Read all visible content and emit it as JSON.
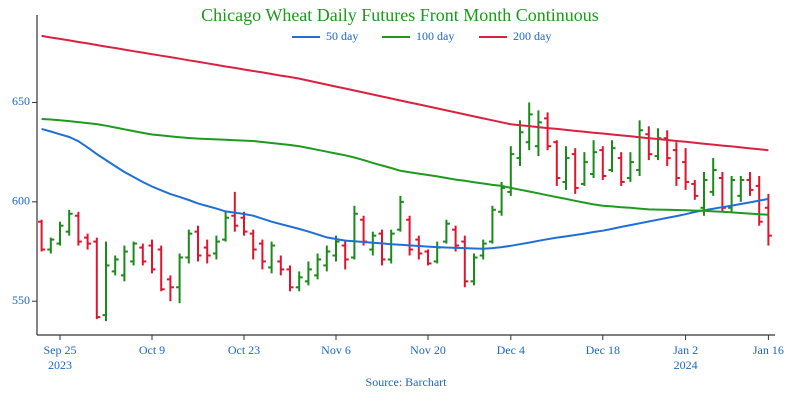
{
  "chart_data": {
    "type": "ohlc",
    "title": "Chicago Wheat Daily Futures Front Month Continuous",
    "source": "Source: Barchart",
    "up_color": "#1a8a1a",
    "down_color": "#e0142c",
    "categories": [
      null,
      null,
      "Sep 25\n2023",
      null,
      null,
      null,
      null,
      null,
      null,
      null,
      null,
      null,
      "Oct 9",
      null,
      null,
      null,
      null,
      null,
      null,
      null,
      null,
      null,
      "Oct 23",
      null,
      null,
      null,
      null,
      null,
      null,
      null,
      null,
      null,
      "Nov 6",
      null,
      null,
      null,
      null,
      null,
      null,
      null,
      null,
      null,
      "Nov 20",
      null,
      null,
      null,
      null,
      null,
      null,
      null,
      null,
      "Dec 4",
      null,
      null,
      null,
      null,
      null,
      null,
      null,
      null,
      null,
      "Dec 18",
      null,
      null,
      null,
      null,
      null,
      null,
      null,
      null,
      "Jan 2\n2024",
      null,
      null,
      null,
      null,
      null,
      null,
      null,
      null,
      "Jan 16"
    ],
    "open": [
      590,
      576,
      579,
      585,
      593,
      582,
      580,
      543,
      565,
      563,
      570,
      577,
      578,
      576,
      561,
      557,
      572,
      585,
      577,
      574,
      581,
      593,
      592,
      584,
      579,
      567,
      570,
      566,
      557,
      560,
      563,
      568,
      573,
      578,
      572,
      591,
      576,
      584,
      571,
      586,
      591,
      581,
      575,
      570,
      580,
      586,
      580,
      560,
      573,
      580,
      595,
      605,
      622,
      630,
      628,
      642,
      630,
      610,
      624,
      609,
      614,
      626,
      616,
      622,
      612,
      616,
      634,
      623,
      632,
      626,
      620,
      609,
      597,
      605,
      612,
      597,
      603,
      611,
      608,
      597
    ],
    "high": [
      591,
      582,
      590,
      596,
      595,
      584,
      582,
      580,
      573,
      578,
      580,
      579,
      581,
      578,
      563,
      574,
      586,
      588,
      581,
      583,
      595,
      605,
      595,
      586,
      581,
      580,
      573,
      568,
      565,
      570,
      574,
      578,
      583,
      581,
      598,
      593,
      585,
      586,
      586,
      603,
      593,
      583,
      576,
      580,
      591,
      588,
      583,
      574,
      581,
      598,
      610,
      628,
      641,
      650,
      646,
      645,
      631,
      628,
      627,
      625,
      631,
      628,
      631,
      625,
      625,
      641,
      638,
      637,
      636,
      630,
      627,
      611,
      615,
      622,
      615,
      613,
      613,
      615,
      613,
      604
    ],
    "low": [
      575,
      574,
      578,
      583,
      578,
      576,
      541,
      540,
      563,
      560,
      568,
      568,
      564,
      555,
      550,
      549,
      569,
      570,
      569,
      571,
      580,
      585,
      583,
      571,
      566,
      564,
      563,
      555,
      555,
      558,
      561,
      565,
      570,
      566,
      571,
      578,
      573,
      568,
      569,
      585,
      573,
      571,
      568,
      569,
      579,
      575,
      557,
      558,
      571,
      579,
      593,
      603,
      618,
      626,
      623,
      626,
      608,
      606,
      604,
      608,
      612,
      611,
      615,
      608,
      610,
      613,
      621,
      621,
      618,
      608,
      606,
      601,
      593,
      603,
      595,
      595,
      600,
      603,
      588,
      578
    ],
    "close": [
      576,
      581,
      588,
      594,
      580,
      579,
      542,
      568,
      571,
      575,
      579,
      570,
      566,
      556,
      557,
      572,
      584,
      573,
      573,
      580,
      592,
      588,
      585,
      576,
      570,
      578,
      566,
      557,
      562,
      566,
      571,
      575,
      580,
      571,
      594,
      580,
      583,
      571,
      584,
      600,
      576,
      574,
      569,
      577,
      589,
      578,
      560,
      572,
      579,
      596,
      607,
      624,
      635,
      644,
      640,
      628,
      612,
      622,
      607,
      620,
      625,
      613,
      627,
      610,
      620,
      636,
      624,
      632,
      622,
      612,
      610,
      603,
      611,
      616,
      597,
      611,
      611,
      606,
      590,
      583
    ],
    "series": [
      {
        "name": "50 day",
        "color": "#1f6fd6",
        "values": [
          636.7,
          635.4,
          634.0,
          632.6,
          630.5,
          627.4,
          624.0,
          621.0,
          618.0,
          615.0,
          612.5,
          610.0,
          607.7,
          605.8,
          603.9,
          602.5,
          600.9,
          599.2,
          597.9,
          596.6,
          595.2,
          594.6,
          593.9,
          593.0,
          591.5,
          590.0,
          588.8,
          587.6,
          586.4,
          585.0,
          583.6,
          582.1,
          581.3,
          580.5,
          580.2,
          579.8,
          579.4,
          579.1,
          578.7,
          578.4,
          578.1,
          577.8,
          577.5,
          577.2,
          577.0,
          576.8,
          576.7,
          576.5,
          576.4,
          576.7,
          577.2,
          577.9,
          578.7,
          579.5,
          580.4,
          581.2,
          582.0,
          582.6,
          583.3,
          584.0,
          584.8,
          585.5,
          586.4,
          587.4,
          588.3,
          589.2,
          590.1,
          591.0,
          591.9,
          592.8,
          593.8,
          594.9,
          595.8,
          596.5,
          597.3,
          598.1,
          598.9,
          599.7,
          600.6,
          601.5
        ]
      },
      {
        "name": "100 day",
        "color": "#1e9a1e",
        "values": [
          641.7,
          641.4,
          641.0,
          640.6,
          640.1,
          639.6,
          639.1,
          638.3,
          637.4,
          636.5,
          635.6,
          634.7,
          633.9,
          633.4,
          632.9,
          632.5,
          632.1,
          631.8,
          631.6,
          631.4,
          631.2,
          631.0,
          630.8,
          630.6,
          630.1,
          629.6,
          629.1,
          628.6,
          628.0,
          627.1,
          626.2,
          625.2,
          624.3,
          623.4,
          622.3,
          621.0,
          619.6,
          618.3,
          617.0,
          615.6,
          614.9,
          614.2,
          613.5,
          612.8,
          612.0,
          611.2,
          610.6,
          609.9,
          609.2,
          608.5,
          608.0,
          607.0,
          606.1,
          605.2,
          604.3,
          603.3,
          602.4,
          601.5,
          600.5,
          599.6,
          598.7,
          598.0,
          597.7,
          597.3,
          597.0,
          596.6,
          596.2,
          596.1,
          596.0,
          595.9,
          595.8,
          595.6,
          595.5,
          595.2,
          595.0,
          594.7,
          594.4,
          594.1,
          593.8,
          593.5
        ]
      },
      {
        "name": "200 day",
        "color": "#dc2040",
        "values": [
          683.5,
          682.7,
          682.0,
          681.2,
          680.4,
          679.7,
          678.9,
          678.1,
          677.4,
          676.6,
          675.8,
          675.1,
          674.3,
          673.5,
          672.8,
          672.0,
          671.2,
          670.5,
          669.7,
          668.9,
          668.1,
          667.4,
          666.6,
          665.8,
          665.1,
          664.3,
          663.5,
          662.8,
          662.0,
          661.0,
          660.0,
          659.0,
          658.0,
          657.0,
          656.0,
          655.0,
          654.0,
          653.0,
          652.0,
          651.0,
          650.0,
          649.0,
          648.0,
          647.0,
          646.0,
          645.0,
          644.0,
          643.0,
          642.0,
          641.0,
          640.0,
          639.0,
          638.5,
          638.1,
          637.6,
          637.1,
          636.7,
          636.2,
          635.7,
          635.3,
          634.8,
          634.4,
          633.9,
          633.4,
          633.0,
          632.5,
          632.0,
          631.6,
          631.1,
          630.6,
          630.2,
          629.7,
          629.2,
          628.8,
          628.3,
          627.9,
          627.4,
          626.9,
          626.5,
          626.0
        ]
      }
    ],
    "ylim": [
      533,
      694
    ],
    "yticks": [
      550,
      600,
      650
    ],
    "grid": false,
    "legend": "top"
  }
}
